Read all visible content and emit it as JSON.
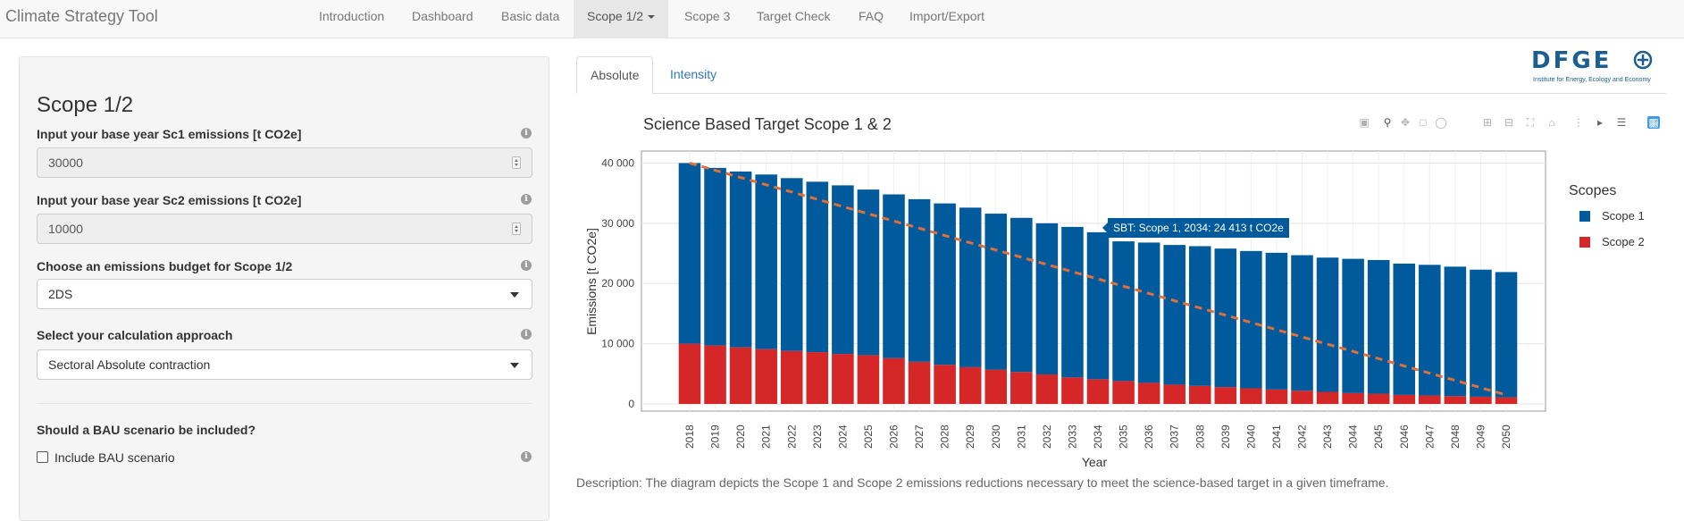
{
  "navbar": {
    "brand": "Climate Strategy Tool",
    "items": [
      {
        "label": "Introduction"
      },
      {
        "label": "Dashboard"
      },
      {
        "label": "Basic data"
      },
      {
        "label": "Scope 1/2"
      },
      {
        "label": "Scope 3"
      },
      {
        "label": "Target Check"
      },
      {
        "label": "FAQ"
      },
      {
        "label": "Import/Export"
      }
    ],
    "active_index": 3
  },
  "sidebar": {
    "title": "Scope 1/2",
    "sc1_label": "Input your base year Sc1 emissions [t CO2e]",
    "sc1_value": "30000",
    "sc2_label": "Input your base year Sc2 emissions [t CO2e]",
    "sc2_value": "10000",
    "budget_label": "Choose an emissions budget for Scope 1/2",
    "budget_value": "2DS",
    "approach_label": "Select your calculation approach",
    "approach_value": "Sectoral Absolute contraction",
    "bau_label": "Should a BAU scenario be included?",
    "bau_checkbox_label": "Include BAU scenario",
    "bau_checked": false
  },
  "tabs": [
    {
      "label": "Absolute"
    },
    {
      "label": "Intensity"
    }
  ],
  "logo": {
    "text": "DFGE",
    "subtitle": "Institute for Energy, Ecology and Economy"
  },
  "description": "Description: The diagram depicts the Scope 1 and Scope 2 emissions reductions necessary to meet the science-based target in a given timeframe.",
  "tooltip": "SBT: Scope 1, 2034: 24 413 t CO2e",
  "colors": {
    "scope1": "#005a9b",
    "scope2": "#d62728",
    "sbt_line": "#e0703a"
  },
  "modebar_icons": [
    "camera-icon",
    "zoom-icon",
    "pan-icon",
    "box-select-icon",
    "lasso-icon",
    "zoom-in-icon",
    "zoom-out-icon",
    "autoscale-icon",
    "home-icon",
    "spike-lines-icon",
    "hover-closest-icon",
    "hover-compare-icon",
    "plotly-logo-icon"
  ],
  "chart_data": {
    "type": "bar",
    "title": "Science Based Target Scope 1 & 2",
    "xlabel": "Year",
    "ylabel": "Emissions [t CO2e]",
    "ylim": [
      0,
      42000
    ],
    "y_ticks": [
      "0",
      "10 000",
      "20 000",
      "30 000",
      "40 000"
    ],
    "y_tick_values": [
      0,
      10000,
      20000,
      30000,
      40000
    ],
    "stacked": true,
    "grid": true,
    "legend_title": "Scopes",
    "legend_position": "right",
    "categories": [
      "2018",
      "2019",
      "2020",
      "2021",
      "2022",
      "2023",
      "2024",
      "2025",
      "2026",
      "2027",
      "2028",
      "2029",
      "2030",
      "2031",
      "2032",
      "2033",
      "2034",
      "2035",
      "2036",
      "2037",
      "2038",
      "2039",
      "2040",
      "2041",
      "2042",
      "2043",
      "2044",
      "2045",
      "2046",
      "2047",
      "2048",
      "2049",
      "2050"
    ],
    "series": [
      {
        "name": "Scope 1",
        "values": [
          30000,
          29500,
          29200,
          29000,
          28700,
          28300,
          28000,
          27500,
          27200,
          27000,
          26800,
          26500,
          25900,
          25600,
          25100,
          25000,
          24413,
          23200,
          23300,
          23200,
          23200,
          23000,
          22800,
          22700,
          22500,
          22300,
          22300,
          22200,
          21800,
          21700,
          21500,
          21100,
          20800
        ]
      },
      {
        "name": "Scope 2",
        "values": [
          10000,
          9700,
          9400,
          9100,
          8800,
          8600,
          8300,
          8100,
          7600,
          7000,
          6500,
          6100,
          5700,
          5300,
          4900,
          4400,
          4100,
          3800,
          3500,
          3200,
          3000,
          2800,
          2600,
          2400,
          2200,
          2000,
          1800,
          1700,
          1500,
          1400,
          1300,
          1200,
          1100
        ]
      }
    ],
    "sbt_line": {
      "x_start": "2018",
      "y_start": 40000,
      "x_end": "2050",
      "y_end": 1500
    }
  }
}
